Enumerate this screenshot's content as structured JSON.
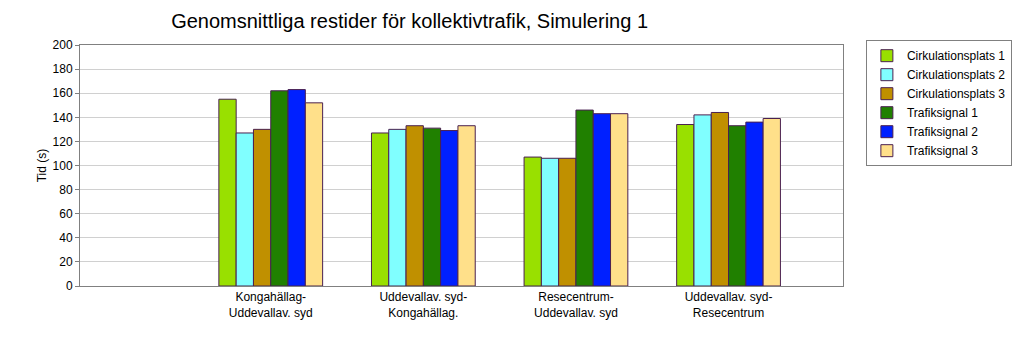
{
  "chart_data": {
    "type": "bar",
    "title": "Genomsnittliga restider för kollektivtrafik, Simulering 1",
    "y_label": "Tid (s)",
    "categories": [
      "Kongahällag-\nUddevallav. syd",
      "Uddevallav. syd-\nKongahällag.",
      "Resecentrum-\nUddevallav. syd",
      "Uddevallav. syd-\nResecentrum"
    ],
    "series": [
      {
        "name": "Cirkulationsplats 1",
        "color": "#99e000",
        "values": [
          155,
          127,
          107,
          134
        ]
      },
      {
        "name": "Cirkulationsplats 2",
        "color": "#80ffff",
        "values": [
          127,
          130,
          106,
          142
        ]
      },
      {
        "name": "Cirkulationsplats 3",
        "color": "#c09000",
        "values": [
          130,
          133,
          106,
          144
        ]
      },
      {
        "name": "Trafiksignal 1",
        "color": "#208000",
        "values": [
          162,
          131,
          146,
          133
        ]
      },
      {
        "name": "Trafiksignal 2",
        "color": "#0020ff",
        "values": [
          163,
          129,
          143,
          136
        ]
      },
      {
        "name": "Trafiksignal 3",
        "color": "#ffe08a",
        "values": [
          152,
          133,
          143,
          139
        ]
      }
    ],
    "ylim": [
      0,
      200
    ],
    "yticks": [
      0,
      20,
      40,
      60,
      80,
      100,
      120,
      140,
      160,
      180,
      200
    ],
    "grid": true,
    "legend": "right"
  }
}
